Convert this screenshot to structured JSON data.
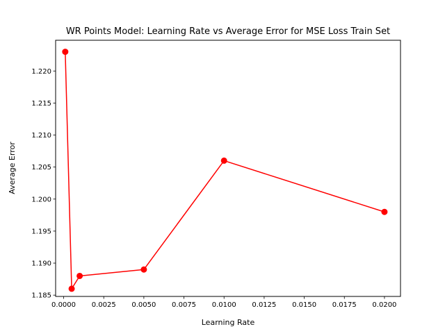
{
  "chart_data": {
    "type": "line",
    "title": "WR Points Model: Learning Rate vs Average Error for MSE Loss Train Set",
    "xlabel": "Learning Rate",
    "ylabel": "Average Error",
    "xlim": [
      -0.0005,
      0.021
    ],
    "ylim": [
      1.1848,
      1.2248
    ],
    "xticks": [
      0.0,
      0.0025,
      0.005,
      0.0075,
      0.01,
      0.0125,
      0.015,
      0.0175,
      0.02
    ],
    "xtick_labels": [
      "0.0000",
      "0.0025",
      "0.0050",
      "0.0075",
      "0.0100",
      "0.0125",
      "0.0150",
      "0.0175",
      "0.0200"
    ],
    "yticks": [
      1.185,
      1.19,
      1.195,
      1.2,
      1.205,
      1.21,
      1.215,
      1.22
    ],
    "ytick_labels": [
      "1.185",
      "1.190",
      "1.195",
      "1.200",
      "1.205",
      "1.210",
      "1.215",
      "1.220"
    ],
    "grid": false,
    "series": [
      {
        "color": "#ff0000",
        "marker": "circle",
        "x": [
          0.0001,
          0.0005,
          0.001,
          0.005,
          0.01,
          0.02
        ],
        "y": [
          1.223,
          1.186,
          1.188,
          1.189,
          1.206,
          1.198
        ]
      }
    ]
  }
}
